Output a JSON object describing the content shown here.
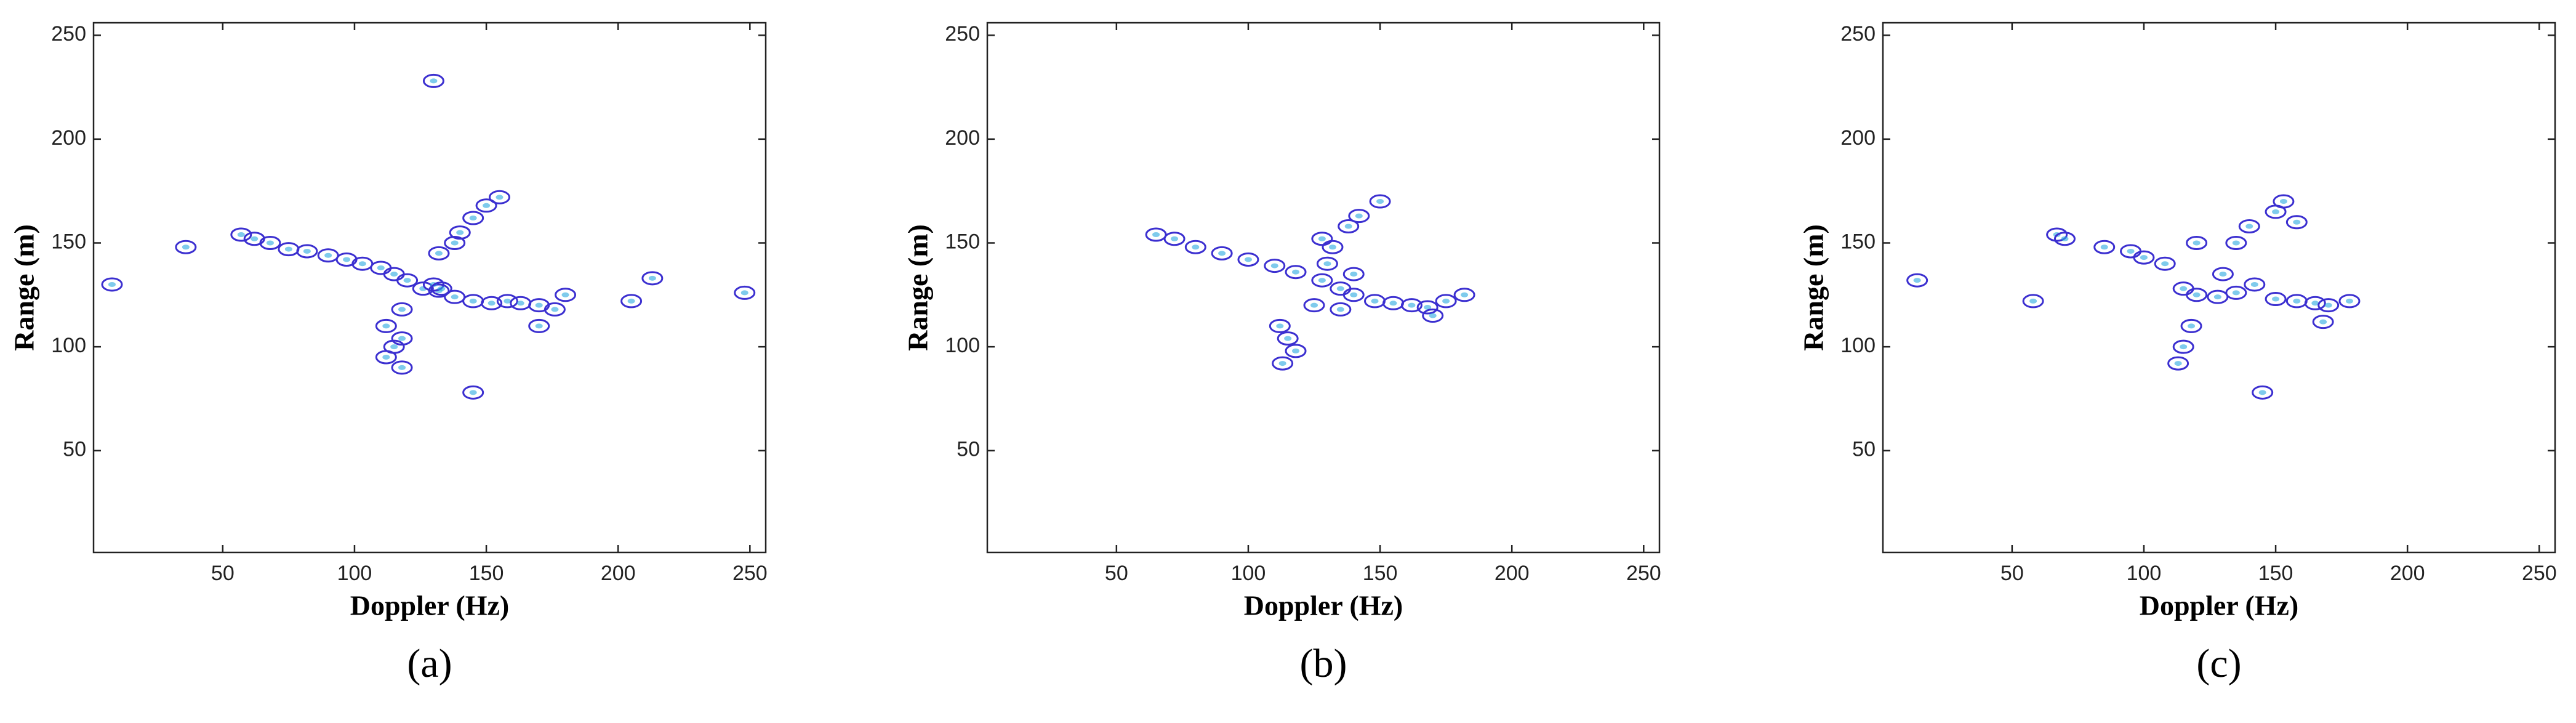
{
  "chart_data": [
    {
      "type": "contour",
      "caption": "(a)",
      "xlabel": "Doppler (Hz)",
      "ylabel": "Range (m)",
      "color": "#3b2fd0",
      "xlim": [
        1,
        256
      ],
      "ylim": [
        1,
        256
      ],
      "xticks": [
        50,
        100,
        150,
        200,
        250
      ],
      "yticks": [
        50,
        100,
        150,
        200,
        250
      ],
      "x": [
        57,
        62,
        68,
        75,
        82,
        90,
        97,
        103,
        110,
        115,
        120,
        126,
        132,
        138,
        145,
        152,
        158,
        163,
        170,
        176,
        170,
        180,
        118,
        112,
        115,
        118,
        112,
        118,
        132,
        138,
        140,
        145,
        150,
        155,
        130,
        145,
        8,
        36,
        248,
        205,
        213,
        130,
        133
      ],
      "y": [
        154,
        152,
        150,
        147,
        146,
        144,
        142,
        140,
        138,
        135,
        132,
        128,
        127,
        124,
        122,
        121,
        122,
        121,
        120,
        118,
        110,
        125,
        118,
        110,
        100,
        104,
        95,
        90,
        145,
        150,
        155,
        162,
        168,
        172,
        228,
        78,
        130,
        148,
        126,
        122,
        133,
        130,
        128
      ]
    },
    {
      "type": "contour",
      "caption": "(b)",
      "xlabel": "Doppler (Hz)",
      "ylabel": "Range (m)",
      "color": "#3b2fd0",
      "xlim": [
        1,
        256
      ],
      "ylim": [
        1,
        256
      ],
      "xticks": [
        50,
        100,
        150,
        200,
        250
      ],
      "yticks": [
        50,
        100,
        150,
        200,
        250
      ],
      "x": [
        65,
        72,
        80,
        90,
        100,
        110,
        118,
        128,
        135,
        140,
        148,
        155,
        162,
        168,
        175,
        182,
        170,
        135,
        125,
        112,
        115,
        118,
        113,
        132,
        128,
        138,
        142,
        150,
        130,
        140
      ],
      "y": [
        154,
        152,
        148,
        145,
        142,
        139,
        136,
        132,
        128,
        125,
        122,
        121,
        120,
        119,
        122,
        125,
        115,
        118,
        120,
        110,
        104,
        98,
        92,
        148,
        152,
        158,
        163,
        170,
        140,
        135
      ]
    },
    {
      "type": "contour",
      "caption": "(c)",
      "xlabel": "Doppler (Hz)",
      "ylabel": "Range (m)",
      "color": "#3b2fd0",
      "xlim": [
        1,
        256
      ],
      "ylim": [
        1,
        256
      ],
      "xticks": [
        50,
        100,
        150,
        200,
        250
      ],
      "yticks": [
        50,
        100,
        150,
        200,
        250
      ],
      "x": [
        14,
        58,
        67,
        70,
        85,
        95,
        100,
        108,
        115,
        120,
        128,
        135,
        142,
        150,
        158,
        165,
        170,
        178,
        168,
        118,
        115,
        113,
        130,
        135,
        140,
        150,
        153,
        158,
        145,
        120
      ],
      "y": [
        132,
        122,
        154,
        152,
        148,
        146,
        143,
        140,
        128,
        125,
        124,
        126,
        130,
        123,
        122,
        121,
        120,
        122,
        112,
        110,
        100,
        92,
        135,
        150,
        158,
        165,
        170,
        160,
        78,
        150
      ]
    }
  ]
}
